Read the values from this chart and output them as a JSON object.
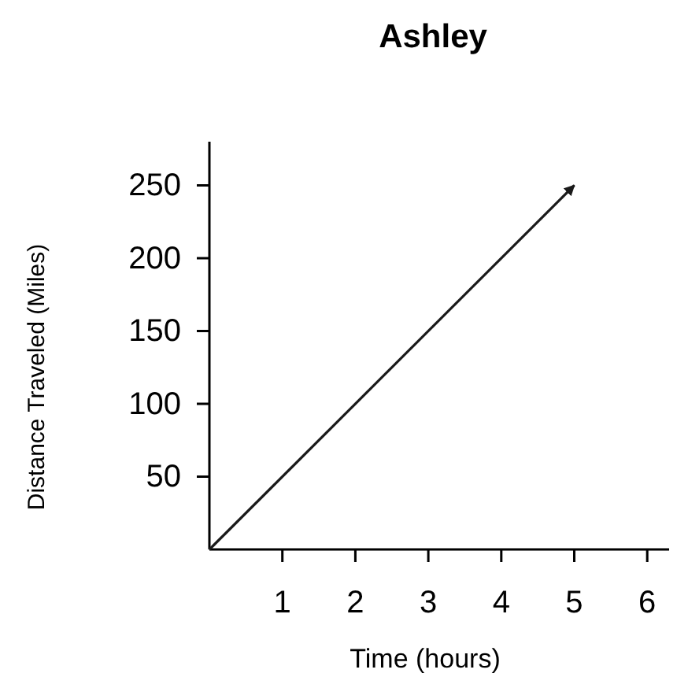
{
  "chart_data": {
    "type": "line",
    "title": "Ashley",
    "xlabel": "Time (hours)",
    "ylabel": "Distance Traveled (Miles)",
    "x": [
      0,
      5
    ],
    "series": [
      {
        "color": "#1a1a1a",
        "values": [
          0,
          250
        ]
      }
    ],
    "xlim": [
      0,
      6.3
    ],
    "ylim": [
      0,
      280
    ],
    "xticks": [
      1,
      2,
      3,
      4,
      5,
      6
    ],
    "yticks": [
      50,
      100,
      150,
      200,
      250
    ]
  }
}
